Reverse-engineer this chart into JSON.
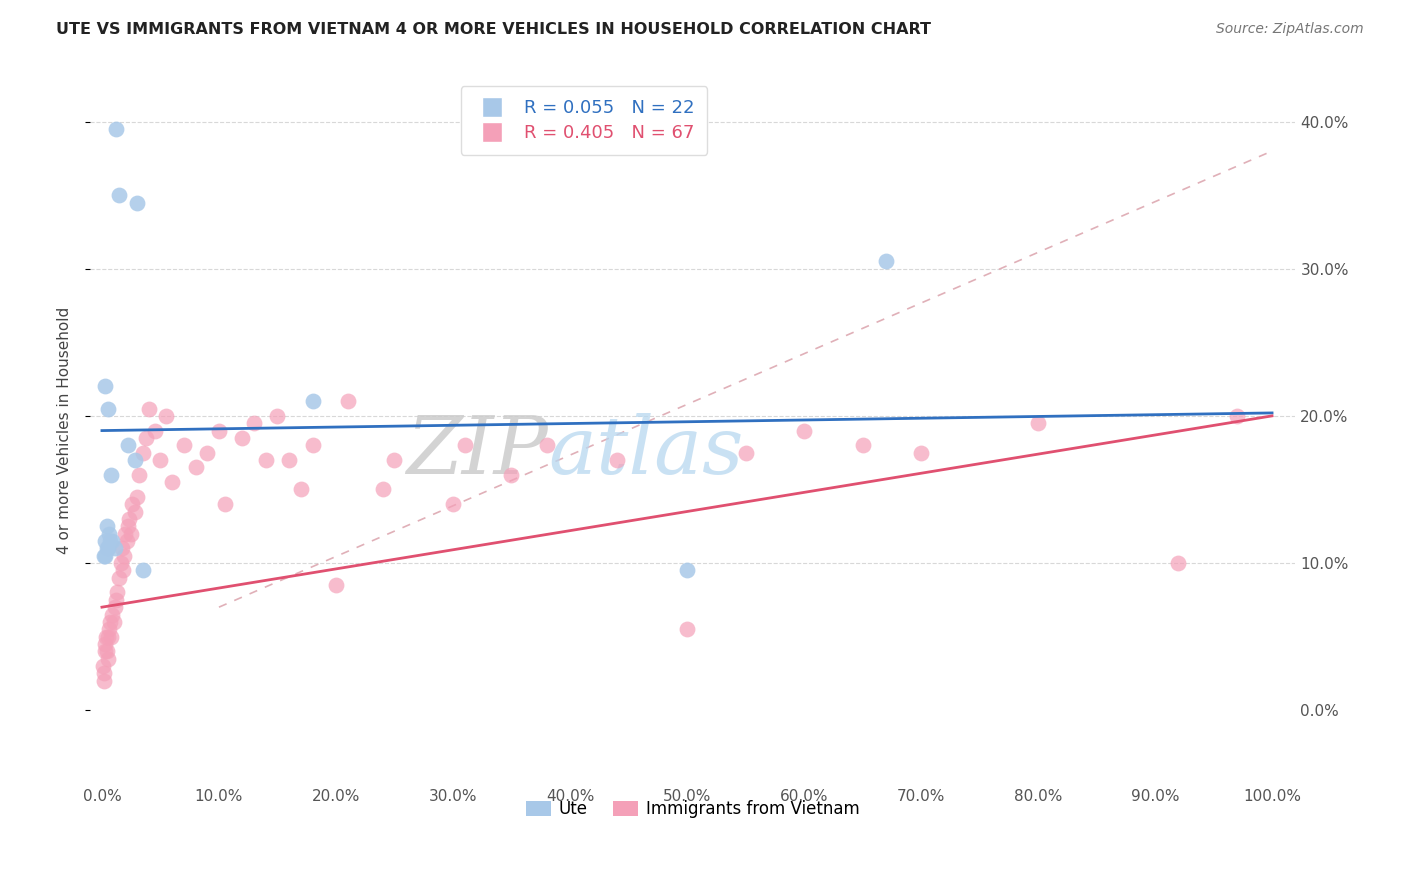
{
  "title": "UTE VS IMMIGRANTS FROM VIETNAM 4 OR MORE VEHICLES IN HOUSEHOLD CORRELATION CHART",
  "source": "Source: ZipAtlas.com",
  "ylabel": "4 or more Vehicles in Household",
  "legend_label1": "Ute",
  "legend_label2": "Immigrants from Vietnam",
  "R1": 0.055,
  "N1": 22,
  "R2": 0.405,
  "N2": 67,
  "color1": "#a8c8e8",
  "color2": "#f4a0b8",
  "line_color1": "#3070c0",
  "line_color2": "#e05070",
  "dashed_line_color": "#e0b0b8",
  "watermark_zip": "ZIP",
  "watermark_atlas": "atlas",
  "ute_x": [
    1.2,
    1.5,
    3.0,
    0.3,
    0.5,
    0.8,
    0.4,
    0.6,
    0.9,
    1.1,
    0.7,
    0.3,
    0.2,
    2.2,
    2.8,
    3.5,
    0.5,
    0.4,
    0.3,
    50.0,
    67.0,
    18.0
  ],
  "ute_y": [
    39.5,
    35.0,
    34.5,
    22.0,
    20.5,
    16.0,
    12.5,
    12.0,
    11.5,
    11.0,
    11.5,
    11.5,
    10.5,
    18.0,
    17.0,
    9.5,
    11.0,
    11.0,
    10.5,
    9.5,
    30.5,
    21.0
  ],
  "viet_x": [
    0.1,
    0.15,
    0.2,
    0.25,
    0.3,
    0.35,
    0.4,
    0.5,
    0.5,
    0.6,
    0.7,
    0.8,
    0.9,
    1.0,
    1.1,
    1.2,
    1.3,
    1.5,
    1.6,
    1.7,
    1.8,
    1.9,
    2.0,
    2.1,
    2.2,
    2.3,
    2.5,
    2.6,
    2.8,
    3.0,
    3.2,
    3.5,
    3.8,
    4.0,
    4.5,
    5.0,
    5.5,
    6.0,
    7.0,
    8.0,
    9.0,
    10.0,
    10.5,
    12.0,
    13.0,
    14.0,
    15.0,
    16.0,
    17.0,
    18.0,
    20.0,
    21.0,
    24.0,
    25.0,
    30.0,
    31.0,
    35.0,
    38.0,
    44.0,
    50.0,
    55.0,
    60.0,
    65.0,
    70.0,
    80.0,
    92.0,
    97.0
  ],
  "viet_y": [
    3.0,
    2.5,
    2.0,
    4.0,
    4.5,
    5.0,
    4.0,
    3.5,
    5.0,
    5.5,
    6.0,
    5.0,
    6.5,
    6.0,
    7.0,
    7.5,
    8.0,
    9.0,
    10.0,
    11.0,
    9.5,
    10.5,
    12.0,
    11.5,
    12.5,
    13.0,
    12.0,
    14.0,
    13.5,
    14.5,
    16.0,
    17.5,
    18.5,
    20.5,
    19.0,
    17.0,
    20.0,
    15.5,
    18.0,
    16.5,
    17.5,
    19.0,
    14.0,
    18.5,
    19.5,
    17.0,
    20.0,
    17.0,
    15.0,
    18.0,
    8.5,
    21.0,
    15.0,
    17.0,
    14.0,
    18.0,
    16.0,
    18.0,
    17.0,
    5.5,
    17.5,
    19.0,
    18.0,
    17.5,
    19.5,
    10.0,
    20.0
  ]
}
